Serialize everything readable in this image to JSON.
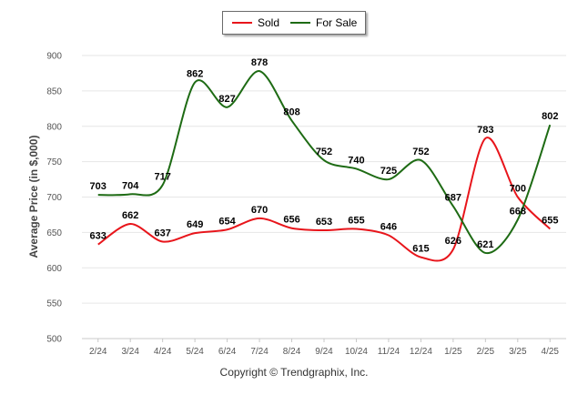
{
  "legend": {
    "sold": {
      "label": "Sold",
      "color": "#e8151b"
    },
    "for_sale": {
      "label": "For Sale",
      "color": "#1e6b14"
    }
  },
  "footer": "Copyright © Trendgraphix, Inc.",
  "chart_data": {
    "type": "line",
    "ylabel": "Average Price (in $,000)",
    "xlabel": "",
    "ylim": [
      500,
      900
    ],
    "yticks": [
      500,
      550,
      600,
      650,
      700,
      750,
      800,
      850,
      900
    ],
    "grid": true,
    "legend_position": "top-center",
    "categories": [
      "2/24",
      "3/24",
      "4/24",
      "5/24",
      "6/24",
      "7/24",
      "8/24",
      "9/24",
      "10/24",
      "11/24",
      "12/24",
      "1/25",
      "2/25",
      "3/25",
      "4/25"
    ],
    "series": [
      {
        "name": "Sold",
        "color": "#e8151b",
        "values": [
          633,
          662,
          637,
          649,
          654,
          670,
          656,
          653,
          655,
          646,
          615,
          626,
          783,
          700,
          655
        ]
      },
      {
        "name": "For Sale",
        "color": "#1e6b14",
        "values": [
          703,
          704,
          717,
          862,
          827,
          878,
          808,
          752,
          740,
          725,
          752,
          687,
          621,
          668,
          802
        ]
      }
    ]
  }
}
